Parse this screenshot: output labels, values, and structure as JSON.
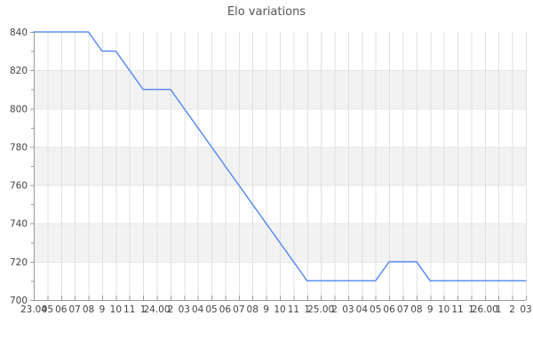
{
  "chart_data": {
    "type": "line",
    "title": "Elo variations",
    "x_labels": [
      "23.04",
      "05",
      "06",
      "07",
      "08",
      "9",
      "10",
      "11",
      "1",
      "24.00",
      "2",
      "03",
      "04",
      "05",
      "06",
      "07",
      "08",
      "9",
      "10",
      "11",
      "1",
      "25.00",
      "2",
      "03",
      "04",
      "05",
      "06",
      "07",
      "08",
      "9",
      "10",
      "11",
      "1",
      "26.00",
      "1",
      "2",
      "03"
    ],
    "values": [
      840,
      840,
      840,
      840,
      840,
      830,
      830,
      820,
      810,
      810,
      810,
      800,
      790,
      780,
      770,
      760,
      750,
      740,
      730,
      720,
      710,
      710,
      710,
      710,
      710,
      710,
      720,
      720,
      720,
      710,
      710,
      710,
      710,
      710,
      710,
      710,
      710
    ],
    "ylim": [
      700,
      840
    ],
    "yticks": [
      840,
      820,
      800,
      780,
      760,
      740,
      720,
      700
    ],
    "y_minor_ticks": [
      830,
      810,
      790,
      770,
      750,
      730,
      710
    ],
    "grid": true,
    "legend_position": "none",
    "colors": {
      "line": "#5b8def",
      "band": "#f2f2f2",
      "grid": "#e0e0e0",
      "grid_horizontal": "#e6e6e6",
      "axis": "#999999",
      "labels": "#444444",
      "title": "#555555",
      "background": "#ffffff"
    }
  }
}
